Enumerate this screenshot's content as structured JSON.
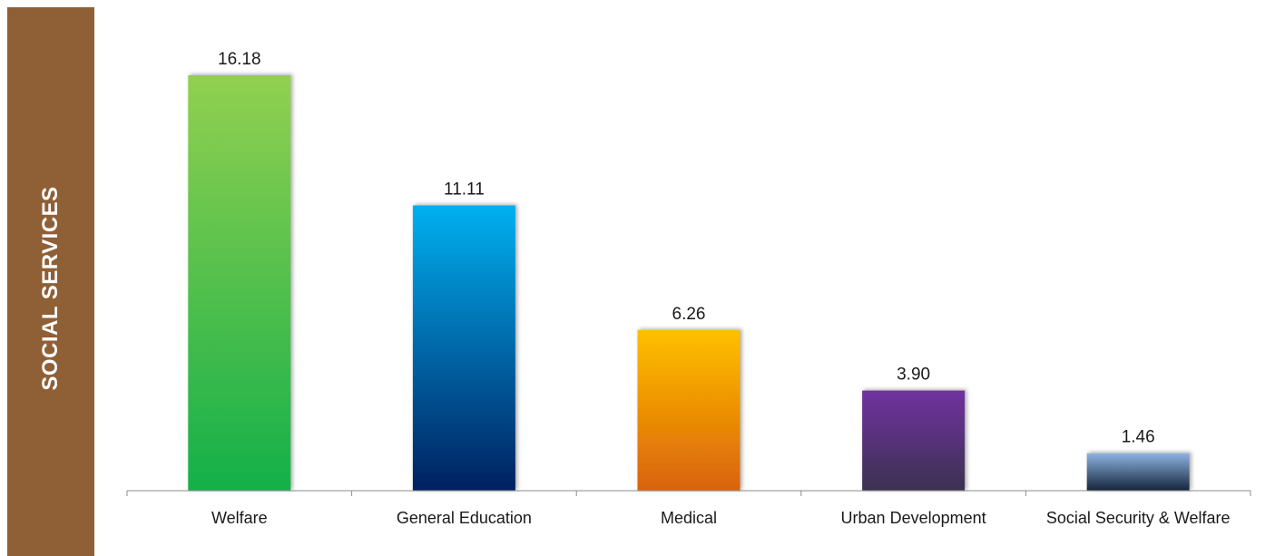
{
  "side_title": "SOCIAL SERVICES",
  "chart_data": {
    "type": "bar",
    "categories": [
      "Welfare",
      "General Education",
      "Medical",
      "Urban Development",
      "Social Security & Welfare"
    ],
    "values": [
      16.18,
      11.11,
      6.26,
      3.9,
      1.46
    ],
    "value_labels": [
      "16.18",
      "11.11",
      "6.26",
      "3.90",
      "1.46"
    ],
    "title": "",
    "xlabel": "",
    "ylabel": "",
    "ylim": [
      0,
      16.18
    ],
    "grid": false,
    "legend": "none",
    "colors": [
      [
        "#92d050",
        "#14b04a"
      ],
      [
        "#00b0f0",
        "#002060"
      ],
      [
        "#ffc000",
        "#d9620a"
      ],
      [
        "#7030a0",
        "#3b3050"
      ],
      [
        "#8db4e2",
        "#16243b"
      ]
    ]
  }
}
